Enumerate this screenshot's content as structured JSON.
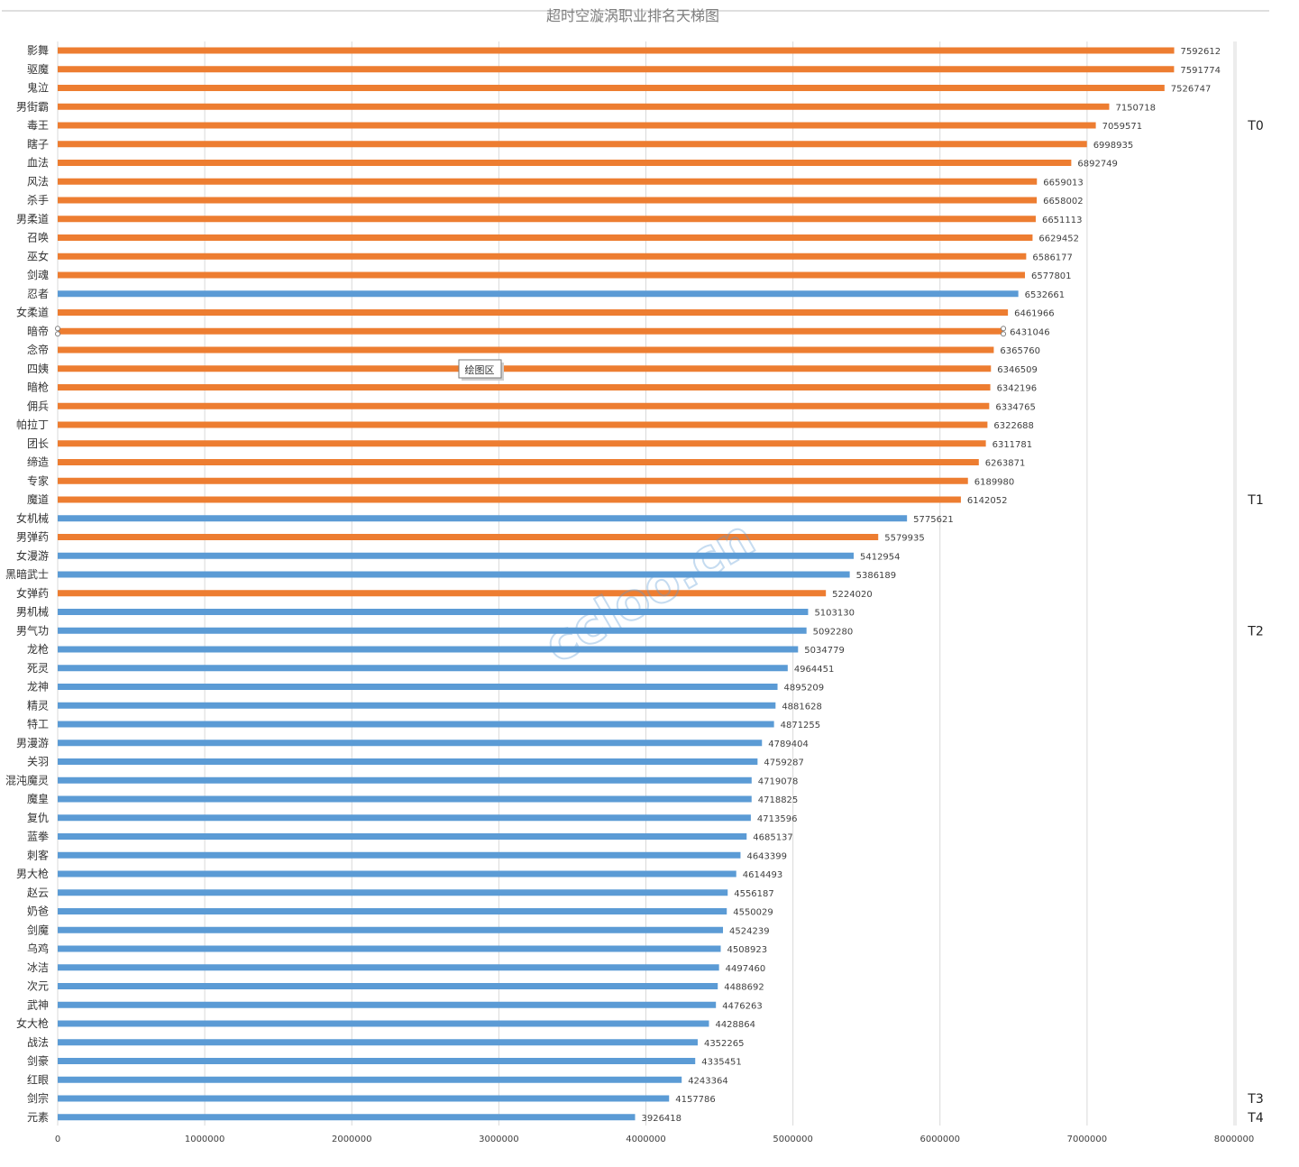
{
  "chart_data": {
    "type": "bar",
    "orientation": "horizontal",
    "title": "超时空漩涡职业排名天梯图",
    "xlim": [
      0,
      8000000
    ],
    "xticks": [
      0,
      1000000,
      2000000,
      3000000,
      4000000,
      5000000,
      6000000,
      7000000,
      8000000
    ],
    "xtick_labels": [
      "0",
      "1000000",
      "2000000",
      "3000000",
      "4000000",
      "5000000",
      "6000000",
      "7000000",
      "8000000"
    ],
    "grid": true,
    "legend": "none",
    "colors": {
      "orange": "#ed7d31",
      "blue": "#5b9bd5"
    },
    "categories": [
      "影舞",
      "驱魔",
      "鬼泣",
      "男街霸",
      "毒王",
      "瞎子",
      "血法",
      "风法",
      "杀手",
      "男柔道",
      "召唤",
      "巫女",
      "剑魂",
      "忍者",
      "女柔道",
      "暗帝",
      "念帝",
      "四姨",
      "暗枪",
      "佣兵",
      "帕拉丁",
      "团长",
      "缔造",
      "专家",
      "魔道",
      "女机械",
      "男弹药",
      "女漫游",
      "黑暗武士",
      "女弹药",
      "男机械",
      "男气功",
      "龙枪",
      "死灵",
      "龙神",
      "精灵",
      "特工",
      "男漫游",
      "关羽",
      "混沌魔灵",
      "魔皇",
      "复仇",
      "蓝拳",
      "刺客",
      "男大枪",
      "赵云",
      "奶爸",
      "剑魔",
      "乌鸡",
      "冰洁",
      "次元",
      "武神",
      "女大枪",
      "战法",
      "剑豪",
      "红眼",
      "剑宗",
      "元素"
    ],
    "values": [
      7592612,
      7591774,
      7526747,
      7150718,
      7059571,
      6998935,
      6892749,
      6659013,
      6658002,
      6651113,
      6629452,
      6586177,
      6577801,
      6532661,
      6461966,
      6431046,
      6365760,
      6346509,
      6342196,
      6334765,
      6322688,
      6311781,
      6263871,
      6189980,
      6142052,
      5775621,
      5579935,
      5412954,
      5386189,
      5224020,
      5103130,
      5092280,
      5034779,
      4964451,
      4895209,
      4881628,
      4871255,
      4789404,
      4759287,
      4719078,
      4718825,
      4713596,
      4685137,
      4643399,
      4614493,
      4556187,
      4550029,
      4524239,
      4508923,
      4497460,
      4488692,
      4476263,
      4428864,
      4352265,
      4335451,
      4243364,
      4157786,
      3926418
    ],
    "bar_colors": [
      "orange",
      "orange",
      "orange",
      "orange",
      "orange",
      "orange",
      "orange",
      "orange",
      "orange",
      "orange",
      "orange",
      "orange",
      "orange",
      "blue",
      "orange",
      "orange",
      "orange",
      "orange",
      "orange",
      "orange",
      "orange",
      "orange",
      "orange",
      "orange",
      "orange",
      "blue",
      "orange",
      "blue",
      "blue",
      "orange",
      "blue",
      "blue",
      "blue",
      "blue",
      "blue",
      "blue",
      "blue",
      "blue",
      "blue",
      "blue",
      "blue",
      "blue",
      "blue",
      "blue",
      "blue",
      "blue",
      "blue",
      "blue",
      "blue",
      "blue",
      "blue",
      "blue",
      "blue",
      "blue",
      "blue",
      "blue",
      "blue",
      "blue"
    ],
    "tiers": [
      {
        "label": "T0",
        "at_category": "毒王"
      },
      {
        "label": "T1",
        "at_category": "魔道"
      },
      {
        "label": "T2",
        "at_category": "男气功"
      },
      {
        "label": "T3",
        "at_category": "剑宗"
      },
      {
        "label": "T4",
        "at_category": "元素"
      }
    ],
    "tooltip": "绘图区",
    "selected_category": "暗帝"
  },
  "watermark": "ccloo.cn"
}
